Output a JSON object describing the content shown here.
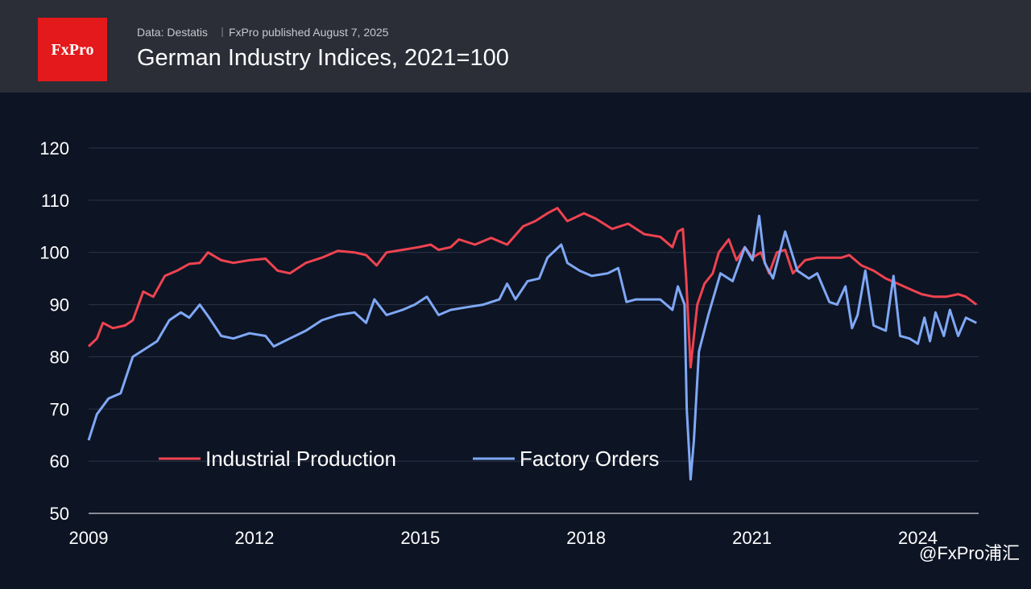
{
  "brand": "FxPro",
  "source": "Data: Destatis",
  "published": "FxPro published August 7, 2025",
  "watermark": "@FxPro浦汇",
  "chart_data": {
    "type": "line",
    "title": "German Industry Indices, 2021=100",
    "xlim": [
      2009,
      2025.1
    ],
    "xticks": [
      2009,
      2012,
      2015,
      2018,
      2021,
      2024
    ],
    "ylim": [
      50,
      120
    ],
    "yticks": [
      50,
      60,
      70,
      80,
      90,
      100,
      110,
      120
    ],
    "grid": true,
    "legend": "bottom-left",
    "series": [
      {
        "name": "Industrial Production",
        "color": "#ef4350",
        "x": [
          2009.0,
          2009.15,
          2009.26,
          2009.44,
          2009.66,
          2009.8,
          2009.99,
          2010.17,
          2010.38,
          2010.6,
          2010.82,
          2011.01,
          2011.16,
          2011.4,
          2011.62,
          2011.91,
          2012.2,
          2012.42,
          2012.64,
          2012.93,
          2013.22,
          2013.51,
          2013.81,
          2014.02,
          2014.21,
          2014.39,
          2014.68,
          2014.97,
          2015.19,
          2015.33,
          2015.55,
          2015.7,
          2015.99,
          2016.28,
          2016.57,
          2016.86,
          2017.08,
          2017.3,
          2017.48,
          2017.66,
          2017.96,
          2018.17,
          2018.47,
          2018.76,
          2019.05,
          2019.34,
          2019.56,
          2019.66,
          2019.75,
          2019.81,
          2019.89,
          2020.01,
          2020.14,
          2020.29,
          2020.4,
          2020.58,
          2020.72,
          2020.87,
          2021.01,
          2021.16,
          2021.31,
          2021.45,
          2021.6,
          2021.74,
          2021.96,
          2022.18,
          2022.4,
          2022.62,
          2022.76,
          2022.98,
          2023.2,
          2023.42,
          2023.64,
          2023.85,
          2024.07,
          2024.29,
          2024.51,
          2024.73,
          2024.87,
          2025.06
        ],
        "values": [
          82,
          83.5,
          86.5,
          85.5,
          86,
          87,
          92.5,
          91.5,
          95.5,
          96.5,
          97.8,
          98,
          100,
          98.5,
          98,
          98.5,
          98.8,
          96.5,
          96,
          98,
          99,
          100.3,
          100,
          99.5,
          97.5,
          100,
          100.5,
          101,
          101.5,
          100.5,
          101,
          102.5,
          101.5,
          102.8,
          101.5,
          105,
          106,
          107.5,
          108.5,
          106,
          107.5,
          106.5,
          104.5,
          105.5,
          103.5,
          103,
          101,
          104,
          104.5,
          95,
          78,
          90,
          94,
          96,
          100,
          102.5,
          98.5,
          101,
          99,
          100,
          96,
          100,
          100.5,
          96,
          98.5,
          99,
          99,
          99,
          99.5,
          97.5,
          96.5,
          95,
          94,
          93,
          92,
          91.5,
          91.5,
          92,
          91.5,
          90
        ]
      },
      {
        "name": "Factory Orders",
        "color": "#7fa8f5",
        "x": [
          2009.0,
          2009.15,
          2009.36,
          2009.58,
          2009.8,
          2010.02,
          2010.24,
          2010.46,
          2010.67,
          2010.82,
          2011.01,
          2011.18,
          2011.4,
          2011.62,
          2011.91,
          2012.2,
          2012.35,
          2012.64,
          2012.93,
          2013.22,
          2013.51,
          2013.81,
          2014.02,
          2014.17,
          2014.39,
          2014.68,
          2014.9,
          2015.12,
          2015.33,
          2015.55,
          2015.84,
          2016.14,
          2016.43,
          2016.57,
          2016.72,
          2016.94,
          2017.15,
          2017.3,
          2017.55,
          2017.66,
          2017.88,
          2018.1,
          2018.39,
          2018.58,
          2018.73,
          2018.9,
          2019.12,
          2019.34,
          2019.56,
          2019.66,
          2019.78,
          2019.82,
          2019.89,
          2019.95,
          2020.04,
          2020.21,
          2020.43,
          2020.65,
          2020.87,
          2021.01,
          2021.13,
          2021.23,
          2021.38,
          2021.6,
          2021.82,
          2022.03,
          2022.18,
          2022.4,
          2022.54,
          2022.69,
          2022.81,
          2022.91,
          2023.05,
          2023.2,
          2023.42,
          2023.56,
          2023.68,
          2023.85,
          2024.0,
          2024.12,
          2024.22,
          2024.32,
          2024.47,
          2024.58,
          2024.73,
          2024.87,
          2025.06
        ],
        "values": [
          64,
          69,
          72,
          73,
          80,
          81.5,
          83,
          87,
          88.5,
          87.5,
          90,
          87.5,
          84,
          83.5,
          84.5,
          84,
          82,
          83.5,
          85,
          87,
          88,
          88.5,
          86.5,
          91,
          88,
          89,
          90,
          91.5,
          88,
          89,
          89.5,
          90,
          91,
          94,
          91,
          94.5,
          95,
          99,
          101.5,
          98,
          96.5,
          95.5,
          96,
          97,
          90.5,
          91,
          91,
          91,
          89,
          93.5,
          90,
          70,
          56.5,
          64,
          81,
          88,
          96,
          94.5,
          101,
          98.5,
          107,
          98,
          95,
          104,
          96.5,
          95,
          96,
          90.5,
          90,
          93.5,
          85.5,
          88,
          96.5,
          86,
          85,
          95.5,
          84,
          83.5,
          82.5,
          87.5,
          83,
          88.5,
          84,
          89,
          84,
          87.5,
          86.5
        ]
      }
    ]
  }
}
